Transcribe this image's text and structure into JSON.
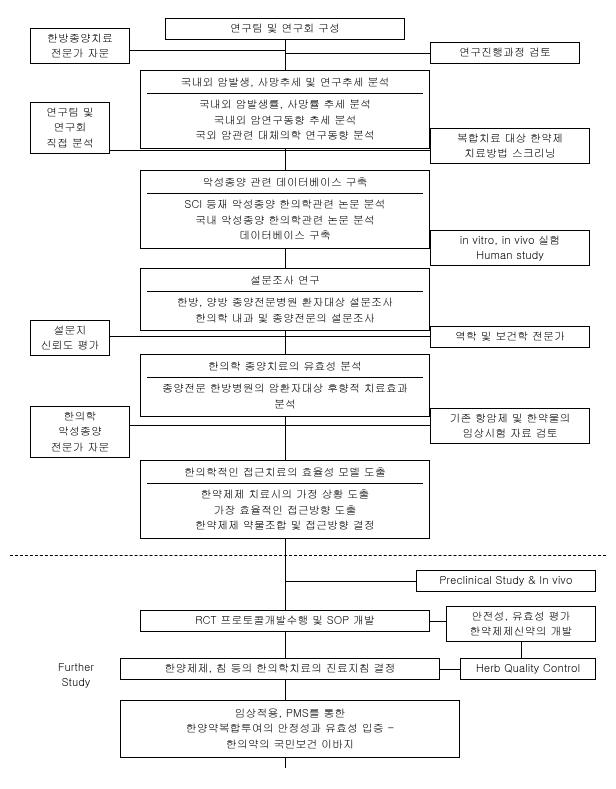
{
  "nodes": {
    "top": "연구팀 및 연구회 구성",
    "left1": "한방종양치료\n전문가 자문",
    "right1": "연구진행과정 검토",
    "c2_title": "국내외 암발생, 사망추세 및 연구추세 분석",
    "c2_body": "국내외 암발생률, 사망률 추세 분석\n국내외 암연구동향 추세 분석\n국외 암관련 대체의학 연구동향 분석",
    "left2": "연구팀 및\n연구회\n직접 분석",
    "right2": "복합치료 대상 한약제\n치료방법 스크리닝",
    "c3_title": "악성종양 관련 데이터베이스 구축",
    "c3_body": "SCI 등재 악성종양 한의학관련 논문 분석\n국내 악성종양 한의학관련 논문 분석\n데이터베이스 구축",
    "right3": "in vitro, in vivo 실험\nHuman study",
    "c4_title": "설문조사 연구",
    "c4_body": "한방, 양방 종양전문병원 환자대상 설문조사\n한의학 내과 및 종양전문의 설문조사",
    "left4": "설문지\n신뢰도 평가",
    "right4": "역학 및 보건학 전문가",
    "c5_title": "한의학 종양치료의 유효성 분석",
    "c5_body": "종양전문 한방병원의 암환자대상 후향적 치료효과\n분석",
    "left5": "한의학\n악성종양\n전문가 자문",
    "right5": "기존 항암제 및 한약물의\n임상시험 자료 검토",
    "c6_title": "한의학적인 접근치료의 효율성 모델 도출",
    "c6_body": "한약제제 치료시의 가정 상황 도출\n가장 효율적인 접근방향 도출\n한약제제 약물조합 및 접근방향 결정",
    "right7": "Preclinical Study & In vivo",
    "c8": "RCT 프로토콜개발수행  및 SOP 개발",
    "right8": "안전성, 유효성 평가\n한약제제신약의 개발",
    "c9": "한양제제, 침 등의 한의학치료의 진료지침 결정",
    "right9": "Herb Quality Control",
    "c10": "임상적용, PMS를 통한\n한양약복합투여의 안정성과 유효성 입증 -\n한의약의 국민보건 이바지",
    "further": "Further\nStudy"
  },
  "style": {
    "border_color": "#000000",
    "bg_color": "#ffffff",
    "font_size": 11
  }
}
